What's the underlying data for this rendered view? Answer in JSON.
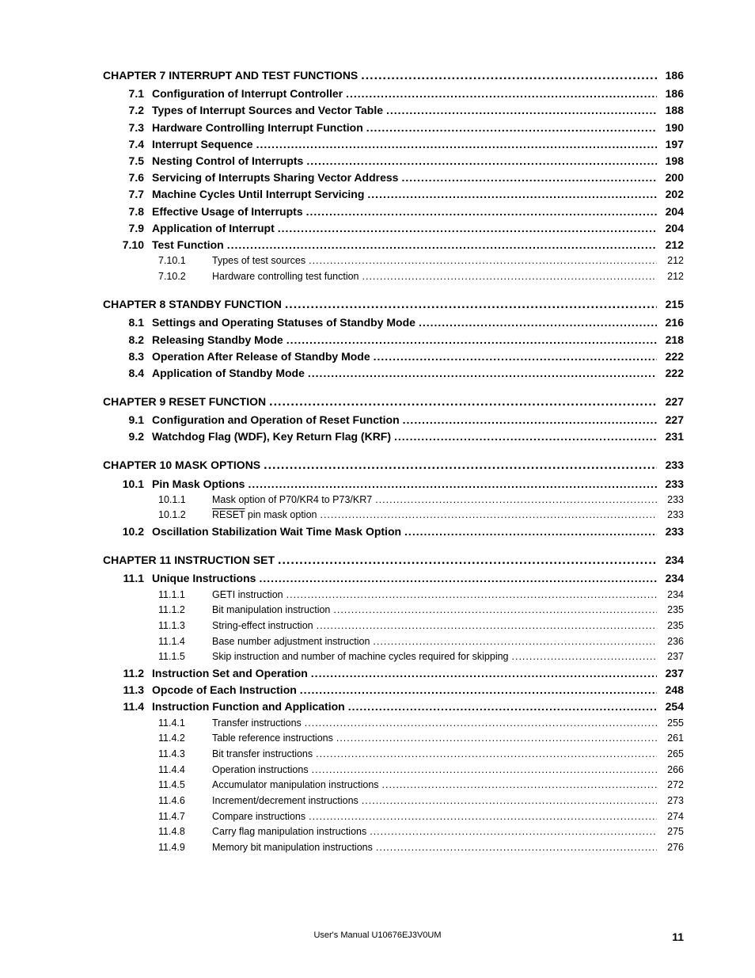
{
  "footer": "User's Manual  U10676EJ3V0UM",
  "page_number": "11",
  "typography": {
    "font_family": "Arial, Helvetica, sans-serif",
    "bold_size_pt": 14,
    "regular_size_pt": 12.5,
    "text_color": "#000000",
    "background_color": "#ffffff"
  },
  "toc": [
    {
      "chapter": {
        "title": "CHAPTER 7  INTERRUPT AND TEST FUNCTIONS",
        "page": "186"
      },
      "sections": [
        {
          "num": "7.1",
          "title": "Configuration of Interrupt Controller",
          "page": "186",
          "subs": []
        },
        {
          "num": "7.2",
          "title": "Types of Interrupt Sources and Vector Table",
          "page": "188",
          "subs": []
        },
        {
          "num": "7.3",
          "title": "Hardware Controlling Interrupt Function",
          "page": "190",
          "subs": []
        },
        {
          "num": "7.4",
          "title": "Interrupt Sequence",
          "page": "197",
          "subs": []
        },
        {
          "num": "7.5",
          "title": "Nesting Control of Interrupts",
          "page": "198",
          "subs": []
        },
        {
          "num": "7.6",
          "title": "Servicing of Interrupts Sharing Vector Address",
          "page": "200",
          "subs": []
        },
        {
          "num": "7.7",
          "title": "Machine Cycles Until Interrupt Servicing",
          "page": "202",
          "subs": []
        },
        {
          "num": "7.8",
          "title": "Effective Usage of Interrupts",
          "page": "204",
          "subs": []
        },
        {
          "num": "7.9",
          "title": "Application of Interrupt",
          "page": "204",
          "subs": []
        },
        {
          "num": "7.10",
          "title": "Test Function",
          "page": "212",
          "subs": [
            {
              "num": "7.10.1",
              "title": "Types of test sources",
              "page": "212"
            },
            {
              "num": "7.10.2",
              "title": "Hardware controlling test function",
              "page": "212"
            }
          ]
        }
      ]
    },
    {
      "chapter": {
        "title": "CHAPTER 8  STANDBY FUNCTION",
        "page": "215"
      },
      "sections": [
        {
          "num": "8.1",
          "title": "Settings and Operating Statuses of Standby Mode",
          "page": "216",
          "subs": []
        },
        {
          "num": "8.2",
          "title": "Releasing Standby Mode",
          "page": "218",
          "subs": []
        },
        {
          "num": "8.3",
          "title": "Operation After Release of Standby Mode",
          "page": "222",
          "subs": []
        },
        {
          "num": "8.4",
          "title": "Application of Standby Mode",
          "page": "222",
          "subs": []
        }
      ]
    },
    {
      "chapter": {
        "title": "CHAPTER 9  RESET FUNCTION",
        "page": "227"
      },
      "sections": [
        {
          "num": "9.1",
          "title": "Configuration and Operation of Reset Function",
          "page": "227",
          "subs": []
        },
        {
          "num": "9.2",
          "title": "Watchdog Flag (WDF), Key Return Flag (KRF)",
          "page": "231",
          "subs": []
        }
      ]
    },
    {
      "chapter": {
        "title": "CHAPTER 10  MASK OPTIONS",
        "page": "233"
      },
      "sections": [
        {
          "num": "10.1",
          "title": "Pin Mask Options",
          "page": "233",
          "subs": [
            {
              "num": "10.1.1",
              "title": "Mask option of P70/KR4 to P73/KR7",
              "page": "233"
            },
            {
              "num": "10.1.2",
              "title_html": "<span class=\"overline\">RESET</span> pin mask option",
              "title": "RESET pin mask option",
              "page": "233"
            }
          ]
        },
        {
          "num": "10.2",
          "title": "Oscillation Stabilization Wait Time Mask Option",
          "page": "233",
          "subs": []
        }
      ]
    },
    {
      "chapter": {
        "title": "CHAPTER 11  INSTRUCTION SET",
        "page": "234"
      },
      "sections": [
        {
          "num": "11.1",
          "title": "Unique Instructions",
          "page": "234",
          "subs": [
            {
              "num": "11.1.1",
              "title": "GETI instruction",
              "page": "234"
            },
            {
              "num": "11.1.2",
              "title": "Bit manipulation instruction",
              "page": "235"
            },
            {
              "num": "11.1.3",
              "title": "String-effect instruction",
              "page": "235"
            },
            {
              "num": "11.1.4",
              "title": "Base number adjustment instruction",
              "page": "236"
            },
            {
              "num": "11.1.5",
              "title": "Skip instruction and number of machine cycles required for skipping",
              "page": "237"
            }
          ]
        },
        {
          "num": "11.2",
          "title": "Instruction Set and Operation",
          "page": "237",
          "subs": []
        },
        {
          "num": "11.3",
          "title": "Opcode of Each Instruction",
          "page": "248",
          "subs": []
        },
        {
          "num": "11.4",
          "title": "Instruction Function and Application",
          "page": "254",
          "subs": [
            {
              "num": "11.4.1",
              "title": "Transfer instructions",
              "page": "255"
            },
            {
              "num": "11.4.2",
              "title": "Table reference instructions",
              "page": "261"
            },
            {
              "num": "11.4.3",
              "title": "Bit transfer instructions",
              "page": "265"
            },
            {
              "num": "11.4.4",
              "title": "Operation instructions",
              "page": "266"
            },
            {
              "num": "11.4.5",
              "title": "Accumulator manipulation instructions",
              "page": "272"
            },
            {
              "num": "11.4.6",
              "title": "Increment/decrement instructions",
              "page": "273"
            },
            {
              "num": "11.4.7",
              "title": "Compare instructions",
              "page": "274"
            },
            {
              "num": "11.4.8",
              "title": "Carry flag manipulation instructions",
              "page": "275"
            },
            {
              "num": "11.4.9",
              "title": "Memory bit manipulation instructions",
              "page": "276"
            }
          ]
        }
      ]
    }
  ]
}
